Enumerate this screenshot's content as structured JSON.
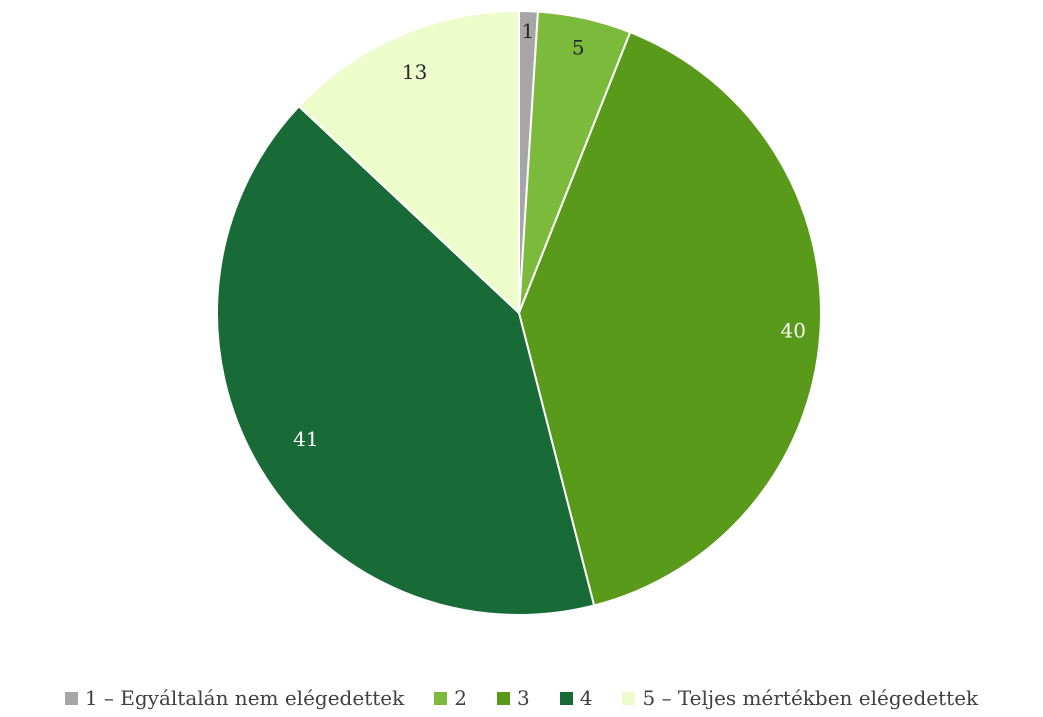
{
  "chart_data": {
    "type": "pie",
    "categories": [
      "1 – Egyáltalán nem elégedettek",
      "2",
      "3",
      "4",
      "5 – Teljes mértékben elégedettek"
    ],
    "values": [
      1,
      5,
      40,
      41,
      13
    ],
    "data_labels": [
      "1",
      "5",
      "40",
      "41",
      "13"
    ],
    "colors": [
      "#A6A6A6",
      "#7CBA3B",
      "#5A9A1A",
      "#186A37",
      "#EEFCCC"
    ],
    "label_colors": [
      "#262626",
      "#262626",
      "#FFFFFF",
      "#FFFFFF",
      "#262626"
    ],
    "start_angle_deg": 0,
    "direction": "clockwise",
    "legend_position": "bottom",
    "title": ""
  }
}
